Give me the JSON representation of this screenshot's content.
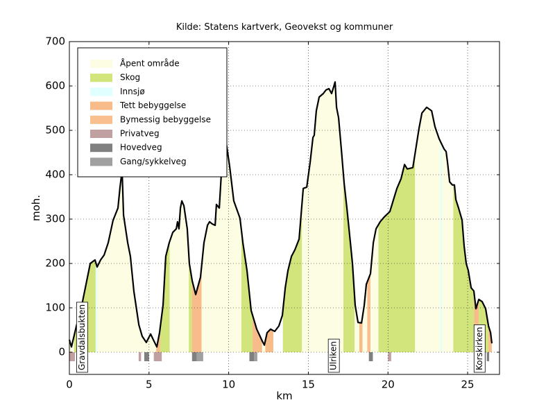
{
  "chart_data": {
    "type": "profile",
    "title": "Kilde: Statens kartverk, Geovekst og kommuner",
    "xlabel": "km",
    "ylabel": "moh.",
    "xlim": [
      0,
      27
    ],
    "ylim": [
      -50,
      700
    ],
    "xticks": [
      0,
      5,
      10,
      15,
      20,
      25
    ],
    "yticks": [
      0,
      100,
      200,
      300,
      400,
      500,
      600,
      700
    ],
    "grid": true,
    "legend": "upper left",
    "line_color": "#000000",
    "x": [
      0,
      0.13,
      0.44,
      0.78,
      1.09,
      1.31,
      1.61,
      1.74,
      1.96,
      2.18,
      2.44,
      2.74,
      3.05,
      3.18,
      3.31,
      3.4,
      3.66,
      3.83,
      4.05,
      4.36,
      4.57,
      4.83,
      5.1,
      5.27,
      5.49,
      5.66,
      5.88,
      6.05,
      6.27,
      6.49,
      6.71,
      6.79,
      6.88,
      6.97,
      7.06,
      7.19,
      7.4,
      7.53,
      7.71,
      7.93,
      8.23,
      8.45,
      8.67,
      8.8,
      8.97,
      9.15,
      9.23,
      9.41,
      9.54,
      9.67,
      9.84,
      10.06,
      10.32,
      10.71,
      10.89,
      11.15,
      11.41,
      11.76,
      12.11,
      12.24,
      12.41,
      12.63,
      12.89,
      13.15,
      13.37,
      13.55,
      13.72,
      13.94,
      14.16,
      14.42,
      14.68,
      14.9,
      15.11,
      15.29,
      15.37,
      15.5,
      15.68,
      15.94,
      16.11,
      16.29,
      16.46,
      16.59,
      16.68,
      16.77,
      16.9,
      17.07,
      17.25,
      17.42,
      17.64,
      17.77,
      17.94,
      18.12,
      18.34,
      18.51,
      18.64,
      18.9,
      19.08,
      19.25,
      19.51,
      19.77,
      20.12,
      20.38,
      20.56,
      20.82,
      21.04,
      21.21,
      21.56,
      21.78,
      21.95,
      22.13,
      22.43,
      22.74,
      22.95,
      23.21,
      23.52,
      23.65,
      23.74,
      23.87,
      24.04,
      24.17,
      24.26,
      24.43,
      24.65,
      24.78,
      24.91,
      25.04,
      25.22,
      25.39,
      25.52,
      25.7,
      25.91,
      26.13,
      26.31,
      26.44,
      26.52
    ],
    "y": [
      28,
      12,
      59,
      106,
      161,
      200,
      208,
      192,
      208,
      219,
      247,
      297,
      325,
      372,
      410,
      309,
      247,
      216,
      137,
      62,
      36,
      22,
      41,
      28,
      12,
      44,
      106,
      216,
      247,
      270,
      278,
      294,
      278,
      325,
      341,
      330,
      278,
      200,
      161,
      130,
      169,
      247,
      286,
      294,
      289,
      286,
      333,
      325,
      403,
      434,
      473,
      419,
      341,
      302,
      247,
      184,
      94,
      52,
      25,
      16,
      44,
      52,
      47,
      59,
      83,
      145,
      184,
      216,
      231,
      255,
      369,
      372,
      427,
      484,
      489,
      544,
      575,
      583,
      591,
      594,
      583,
      598,
      609,
      552,
      528,
      458,
      380,
      325,
      247,
      200,
      106,
      67,
      66,
      106,
      153,
      177,
      247,
      278,
      294,
      305,
      317,
      348,
      369,
      391,
      423,
      413,
      416,
      466,
      505,
      539,
      552,
      544,
      508,
      481,
      458,
      452,
      427,
      384,
      377,
      377,
      344,
      325,
      298,
      239,
      200,
      184,
      145,
      138,
      98,
      119,
      114,
      98,
      59,
      44,
      20
    ],
    "land_cover": [
      {
        "name": "Åpent område",
        "color": "#fdfde3"
      },
      {
        "name": "Skog",
        "color": "#d2e57c"
      },
      {
        "name": "Innsjø",
        "color": "#e0ffff"
      },
      {
        "name": "Tett bebyggelse",
        "color": "#f7bc8a"
      },
      {
        "name": "Bymessig bebyggelse",
        "color": "#f9bf8e"
      }
    ],
    "roads": [
      {
        "name": "Privatveg",
        "color": "#c0a0a0"
      },
      {
        "name": "Hovedveg",
        "color": "#808080"
      },
      {
        "name": "Gang/sykkelveg",
        "color": "#a0a0a0"
      }
    ],
    "segments": [
      {
        "start": 0,
        "end": 0.3,
        "class": "Åpent område"
      },
      {
        "start": 0.3,
        "end": 1.65,
        "class": "Skog"
      },
      {
        "start": 1.65,
        "end": 1.75,
        "class": "Innsjø"
      },
      {
        "start": 1.75,
        "end": 5.45,
        "class": "Åpent område"
      },
      {
        "start": 5.45,
        "end": 5.7,
        "class": "Tett bebyggelse"
      },
      {
        "start": 5.7,
        "end": 6.3,
        "class": "Skog"
      },
      {
        "start": 6.3,
        "end": 7.5,
        "class": "Åpent område"
      },
      {
        "start": 7.5,
        "end": 7.7,
        "class": "Skog"
      },
      {
        "start": 7.7,
        "end": 8.3,
        "class": "Tett bebyggelse"
      },
      {
        "start": 8.3,
        "end": 10.8,
        "class": "Åpent område"
      },
      {
        "start": 10.8,
        "end": 11.5,
        "class": "Skog"
      },
      {
        "start": 11.5,
        "end": 12.1,
        "class": "Tett bebyggelse"
      },
      {
        "start": 12.1,
        "end": 12.3,
        "class": "Åpent område"
      },
      {
        "start": 12.3,
        "end": 12.8,
        "class": "Tett bebyggelse"
      },
      {
        "start": 13.4,
        "end": 14.6,
        "class": "Skog"
      },
      {
        "start": 14.6,
        "end": 17.2,
        "class": "Åpent område"
      },
      {
        "start": 17.2,
        "end": 17.9,
        "class": "Skog"
      },
      {
        "start": 17.9,
        "end": 18.2,
        "class": "Åpent område"
      },
      {
        "start": 18.2,
        "end": 18.4,
        "class": "Tett bebyggelse"
      },
      {
        "start": 18.4,
        "end": 18.7,
        "class": "Åpent område"
      },
      {
        "start": 18.7,
        "end": 18.9,
        "class": "Bymessig bebyggelse"
      },
      {
        "start": 18.9,
        "end": 19.4,
        "class": "Åpent område"
      },
      {
        "start": 19.4,
        "end": 21.7,
        "class": "Skog"
      },
      {
        "start": 21.7,
        "end": 23.3,
        "class": "Åpent område"
      },
      {
        "start": 23.3,
        "end": 23.4,
        "class": "Innsjø"
      },
      {
        "start": 23.4,
        "end": 24.1,
        "class": "Åpent område"
      },
      {
        "start": 24.1,
        "end": 25.4,
        "class": "Skog"
      },
      {
        "start": 25.4,
        "end": 25.7,
        "class": "Tett bebyggelse"
      },
      {
        "start": 25.7,
        "end": 26.3,
        "class": "Skog"
      },
      {
        "start": 26.3,
        "end": 26.52,
        "class": "Bymessig bebyggelse"
      }
    ],
    "road_segments": [
      {
        "start": 0,
        "end": 0.35,
        "class": "Privatveg"
      },
      {
        "start": 4.35,
        "end": 4.5,
        "class": "Privatveg"
      },
      {
        "start": 4.7,
        "end": 5.0,
        "class": "Hovedveg"
      },
      {
        "start": 5.3,
        "end": 5.8,
        "class": "Privatveg"
      },
      {
        "start": 7.7,
        "end": 8.0,
        "class": "Hovedveg"
      },
      {
        "start": 8.0,
        "end": 8.4,
        "class": "Gang/sykkelveg"
      },
      {
        "start": 11.3,
        "end": 11.6,
        "class": "Hovedveg"
      },
      {
        "start": 11.6,
        "end": 11.8,
        "class": "Gang/sykkelveg"
      },
      {
        "start": 18.8,
        "end": 19.05,
        "class": "Hovedveg"
      },
      {
        "start": 20.0,
        "end": 20.2,
        "class": "Privatveg"
      },
      {
        "start": 25.9,
        "end": 26.05,
        "class": "Gang/sykkelveg"
      },
      {
        "start": 26.2,
        "end": 26.35,
        "class": "Hovedveg"
      }
    ],
    "annotations": [
      {
        "text": "Gravdalsbukten",
        "x": 0.8
      },
      {
        "text": "Ulriken",
        "x": 16.6
      },
      {
        "text": "Korskirken",
        "x": 25.75
      }
    ]
  }
}
